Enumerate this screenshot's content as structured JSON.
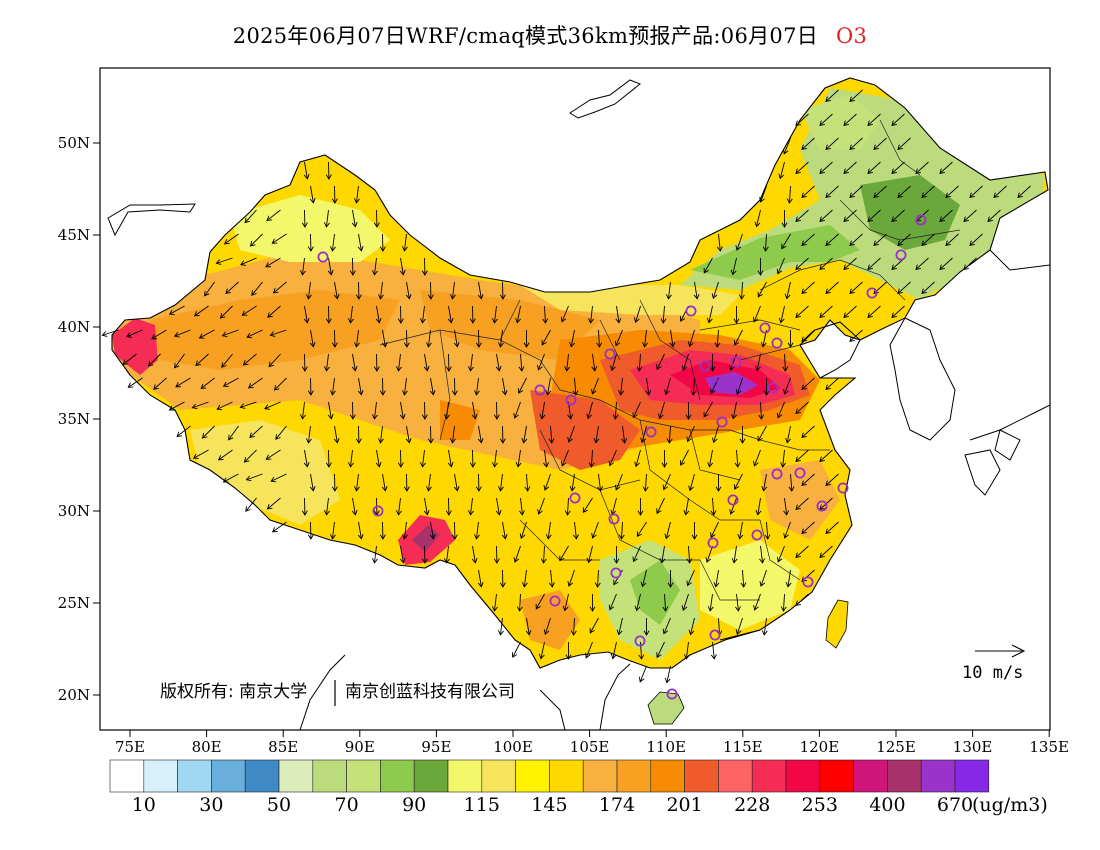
{
  "title": {
    "main": "2025年06月07日WRF/cmaq模式36km预报产品:06月07日",
    "species": "O3",
    "species_color": "#e02020"
  },
  "map": {
    "lon_ticks": [
      "75E",
      "80E",
      "85E",
      "90E",
      "95E",
      "100E",
      "105E",
      "110E",
      "115E",
      "120E",
      "125E",
      "130E",
      "135E"
    ],
    "lat_ticks": [
      "20N",
      "25N",
      "30N",
      "35N",
      "40N",
      "45N",
      "50N"
    ],
    "lon_range": [
      73,
      135
    ],
    "lat_range": [
      18,
      54
    ],
    "credit": "版权所有: 南京大学",
    "credit2": "南京创蓝科技有限公司",
    "wind_reference": "10  m/s",
    "wind_direction": "predominantly northerly / northwesterly flow",
    "station_marker_color": "#9b30c8"
  },
  "colorbar": {
    "colors": [
      "#ffffff",
      "#d8f0fb",
      "#a0d8f4",
      "#6aaedc",
      "#3f8ac4",
      "#dcedb9",
      "#bcdb7d",
      "#c4e279",
      "#8ecb4d",
      "#6ba83b",
      "#f3f86b",
      "#f5e45c",
      "#fff200",
      "#ffd800",
      "#f8b03e",
      "#f8a021",
      "#f88b04",
      "#ef5b2b",
      "#fe6464",
      "#f52d55",
      "#f20746",
      "#ff0000",
      "#d0157a",
      "#a8316c",
      "#9a32cc",
      "#8628e6"
    ],
    "labels": [
      "10",
      "30",
      "50",
      "70",
      "90",
      "115",
      "145",
      "174",
      "201",
      "228",
      "253",
      "400",
      "670"
    ],
    "unit": "(ug/m3)"
  }
}
